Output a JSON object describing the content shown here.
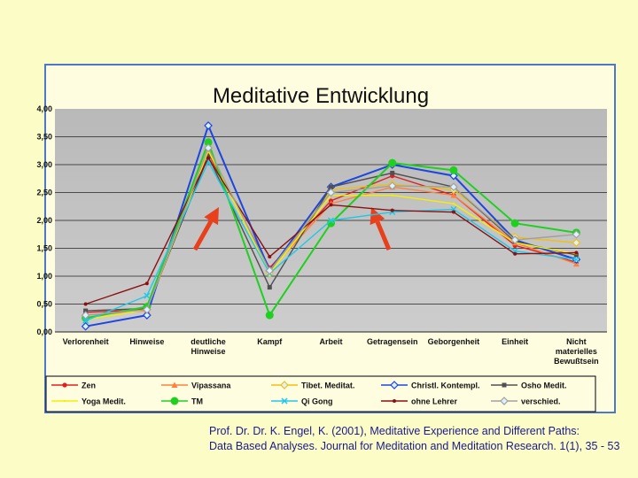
{
  "citation": {
    "line1": "Prof. Dr. Dr. K. Engel, K. (2001), Meditative Experience and Different Paths:",
    "line2": "Data Based Analyses. Journal for Meditation and Meditation Research. 1(1), 35 - 53"
  },
  "colors": {
    "background": "#fcfcc7",
    "frame_border": "#4b78c8",
    "plot_area": "#c0c0c0",
    "arrow": "#e8401c",
    "citation_text": "#1a1a8a"
  },
  "chart_data": {
    "type": "line",
    "title": "Meditative Entwicklung",
    "xlabel": "",
    "ylabel": "",
    "ylim": [
      0,
      4
    ],
    "yticks": [
      "0,00",
      "0,50",
      "1,00",
      "1,50",
      "2,00",
      "2,50",
      "3,00",
      "3,50",
      "4,00"
    ],
    "grid": true,
    "legend_position": "bottom",
    "categories": [
      [
        "Verlorenheit"
      ],
      [
        "Hinweise"
      ],
      [
        "deutliche",
        "Hinweise"
      ],
      [
        "Kampf"
      ],
      [
        "Arbeit"
      ],
      [
        "Getragensein"
      ],
      [
        "Geborgenheit"
      ],
      [
        "Einheit"
      ],
      [
        "Nicht",
        "materielles",
        "Bewußtsein"
      ]
    ],
    "series": [
      {
        "name": "Zen",
        "color": "#e02020",
        "marker": "circle",
        "values": [
          0.35,
          0.4,
          3.2,
          1.15,
          2.35,
          2.8,
          2.45,
          1.55,
          1.25
        ]
      },
      {
        "name": "Vipassana",
        "color": "#ff8040",
        "marker": "triangle",
        "values": [
          0.3,
          0.38,
          3.25,
          1.1,
          2.3,
          2.6,
          2.45,
          1.6,
          1.22
        ]
      },
      {
        "name": "Tibet. Meditat.",
        "color": "#f0c010",
        "marker": "diamond",
        "values": [
          0.25,
          0.45,
          3.3,
          1.05,
          2.55,
          2.65,
          2.55,
          1.7,
          1.6
        ]
      },
      {
        "name": "Christl. Kontempl.",
        "color": "#1c46e0",
        "marker": "diamond",
        "values": [
          0.1,
          0.3,
          3.7,
          1.1,
          2.6,
          3.0,
          2.8,
          1.65,
          1.3
        ]
      },
      {
        "name": "Osho Medit.",
        "color": "#505050",
        "marker": "square",
        "values": [
          0.38,
          0.42,
          3.15,
          0.8,
          2.6,
          2.85,
          2.6,
          1.62,
          1.38
        ]
      },
      {
        "name": "Yoga Medit.",
        "color": "#f4f000",
        "marker": "none",
        "values": [
          0.22,
          0.4,
          3.25,
          1.05,
          2.45,
          2.45,
          2.3,
          1.6,
          1.4
        ]
      },
      {
        "name": "TM",
        "color": "#20d020",
        "marker": "circle-large",
        "values": [
          0.25,
          0.45,
          3.4,
          0.3,
          1.95,
          3.03,
          2.9,
          1.95,
          1.78
        ]
      },
      {
        "name": "Qi Gong",
        "color": "#20c8e8",
        "marker": "cross",
        "values": [
          0.2,
          0.65,
          3.05,
          1.05,
          2.0,
          2.15,
          2.2,
          1.45,
          1.3
        ]
      },
      {
        "name": "ohne Lehrer",
        "color": "#8b1010",
        "marker": "small-circle",
        "values": [
          0.5,
          0.87,
          3.12,
          1.35,
          2.28,
          2.18,
          2.15,
          1.4,
          1.42
        ]
      },
      {
        "name": "verschied.",
        "color": "#a0a0a0",
        "marker": "diamond",
        "values": [
          0.3,
          0.4,
          3.3,
          1.1,
          2.5,
          2.62,
          2.6,
          1.65,
          1.75
        ]
      }
    ]
  }
}
